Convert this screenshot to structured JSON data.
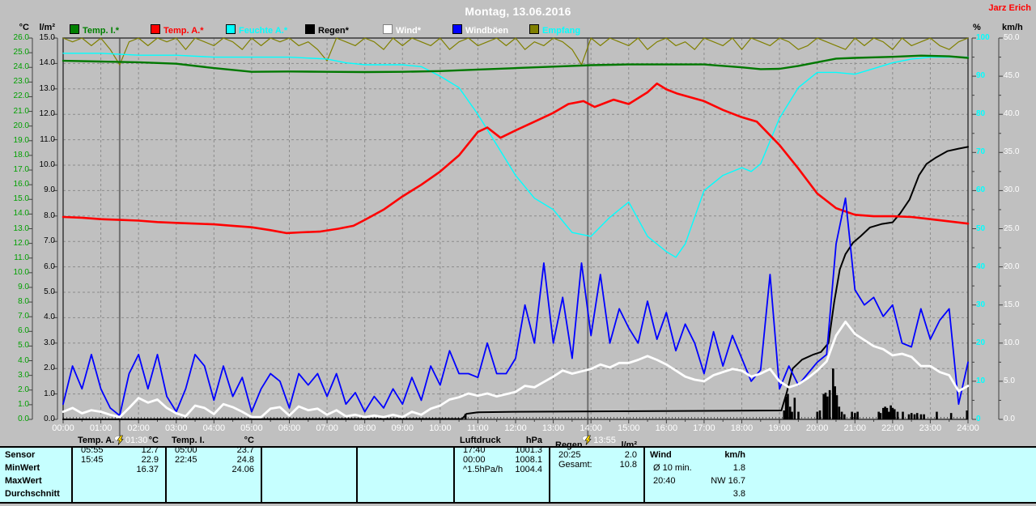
{
  "window": {
    "title": "Montag, 13.06.2016",
    "owner": "Jarz Erich"
  },
  "colors": {
    "background": "#c0c0c0",
    "grid": "#8c8c8c",
    "frame": "#404040",
    "temp_axis": "#00a000",
    "rain_axis_text": "#000000",
    "pct_axis": "#00ffff",
    "wind_axis": "#ffffff",
    "x_axis_text": "#ffffff",
    "temp_i": "#007800",
    "temp_a": "#ff0000",
    "feuchte": "#00ffff",
    "regen": "#000000",
    "wind": "#ffffff",
    "windboeen": "#0000ff",
    "empfang": "#808000"
  },
  "legend": {
    "items": [
      {
        "label": "Temp. I.*",
        "square": "#008000",
        "text": "#008000",
        "x": 86
      },
      {
        "label": "Temp. A.*",
        "square": "#ff0000",
        "text": "#ff0000",
        "x": 186
      },
      {
        "label": "Feuchte A.*",
        "square": "#00ffff",
        "text": "#00ffff",
        "x": 279
      },
      {
        "label": "Regen*",
        "square": "#000000",
        "text": "#000000",
        "x": 377
      },
      {
        "label": "Wind*",
        "square": "#ffffff",
        "text": "#ffffff",
        "x": 473
      },
      {
        "label": "Windböen",
        "square": "#0000ff",
        "text": "#ffffff",
        "x": 559
      },
      {
        "label": "Empfang",
        "square": "#808000",
        "text": "#00ffff",
        "x": 654
      }
    ]
  },
  "axes": {
    "temp": {
      "title": "°C",
      "min": 0,
      "max": 26,
      "ticks": [
        "26.0",
        "25.0",
        "24.0",
        "23.0",
        "22.0",
        "21.0",
        "20.0",
        "19.0",
        "18.0",
        "17.0",
        "16.0",
        "15.0",
        "14.0",
        "13.0",
        "12.0",
        "11.0",
        "10.0",
        "9.0",
        "8.0",
        "7.0",
        "6.0",
        "5.0",
        "4.0",
        "3.0",
        "2.0",
        "1.0",
        "0.0"
      ]
    },
    "rain": {
      "title": "l/m²",
      "min": 0,
      "max": 15,
      "ticks": [
        "15.0",
        "14.0",
        "13.0",
        "12.0",
        "11.0",
        "10.0",
        "9.0",
        "8.0",
        "7.0",
        "6.0",
        "5.0",
        "4.0",
        "3.0",
        "2.0",
        "1.0",
        "0.0"
      ]
    },
    "pct": {
      "title": "%",
      "min": 0,
      "max": 100,
      "ticks": [
        "100",
        "90",
        "80",
        "70",
        "60",
        "50",
        "40",
        "30",
        "20",
        "10",
        "0"
      ]
    },
    "wind": {
      "title": "km/h",
      "min": 0,
      "max": 50,
      "ticks": [
        "50.0",
        "45.0",
        "40.0",
        "35.0",
        "30.0",
        "25.0",
        "20.0",
        "15.0",
        "10.0",
        "5.0",
        "0.0"
      ]
    }
  },
  "x_axis": {
    "labels": [
      "00:00",
      "01:00",
      "02:00",
      "03:00",
      "04:00",
      "05:00",
      "06:00",
      "07:00",
      "08:00",
      "09:00",
      "10:00",
      "11:00",
      "12:00",
      "13:00",
      "14:00",
      "15:00",
      "16:00",
      "17:00",
      "18:00",
      "19:00",
      "20:00",
      "21:00",
      "22:00",
      "23:00",
      "24:00"
    ]
  },
  "markers": [
    {
      "label": "01:30",
      "hour": 1.5
    },
    {
      "label": "13:55",
      "hour": 13.9167
    }
  ],
  "chart_data": {
    "type": "line",
    "title": "Montag, 13.06.2016",
    "x_unit": "hours 0-24",
    "axis_ranges": {
      "temp_c": [
        0,
        26
      ],
      "rain_lm2": [
        0,
        15
      ],
      "humidity_pct": [
        0,
        100
      ],
      "wind_kmh": [
        0,
        50
      ]
    },
    "series": [
      {
        "name": "Temp. I.",
        "unit": "°C",
        "axis": "temp",
        "color": "#007800",
        "width": 2.4,
        "x": [
          0,
          1,
          2,
          3,
          4,
          5,
          6,
          7,
          8,
          9,
          10,
          11,
          12,
          13,
          14,
          15,
          16,
          17,
          18,
          18.5,
          19,
          19.5,
          20,
          20.5,
          21,
          22,
          22.75,
          23.5,
          24
        ],
        "y": [
          24.45,
          24.4,
          24.35,
          24.25,
          23.95,
          23.7,
          23.72,
          23.7,
          23.68,
          23.7,
          23.75,
          23.85,
          23.95,
          24.05,
          24.15,
          24.2,
          24.2,
          24.2,
          24.0,
          23.88,
          23.9,
          24.1,
          24.35,
          24.6,
          24.65,
          24.72,
          24.8,
          24.75,
          24.65
        ]
      },
      {
        "name": "Temp. A.",
        "unit": "°C",
        "axis": "temp",
        "color": "#ff0000",
        "width": 2.6,
        "x": [
          0,
          0.5,
          1,
          1.5,
          2,
          2.5,
          3,
          3.5,
          4,
          4.5,
          5,
          5.5,
          5.92,
          6.3,
          6.8,
          7.3,
          7.7,
          8,
          8.5,
          9,
          9.5,
          10,
          10.5,
          11,
          11.25,
          11.6,
          12,
          12.5,
          13,
          13.4,
          13.8,
          14.1,
          14.3,
          14.6,
          15,
          15.5,
          15.75,
          16,
          16.3,
          17,
          17.5,
          18,
          18.4,
          19,
          19.5,
          20,
          20.5,
          21,
          21.5,
          22,
          22.5,
          23,
          23.5,
          24
        ],
        "y": [
          13.8,
          13.75,
          13.65,
          13.6,
          13.55,
          13.45,
          13.4,
          13.35,
          13.3,
          13.2,
          13.1,
          12.9,
          12.7,
          12.75,
          12.8,
          13.0,
          13.2,
          13.6,
          14.3,
          15.2,
          16.0,
          16.9,
          18.0,
          19.6,
          19.9,
          19.2,
          19.7,
          20.3,
          20.9,
          21.5,
          21.7,
          21.3,
          21.5,
          21.8,
          21.5,
          22.3,
          22.9,
          22.5,
          22.2,
          21.7,
          21.1,
          20.6,
          20.3,
          18.7,
          17.1,
          15.4,
          14.4,
          13.95,
          13.85,
          13.85,
          13.8,
          13.65,
          13.5,
          13.35
        ]
      },
      {
        "name": "Feuchte A.",
        "unit": "%",
        "axis": "pct",
        "color": "#00ffff",
        "width": 1.4,
        "x": [
          0,
          1,
          2,
          3,
          4,
          5,
          6,
          7,
          7.5,
          8,
          9,
          9.5,
          10,
          10.5,
          11,
          11.5,
          12,
          12.5,
          13,
          13.5,
          14,
          14.5,
          15,
          15.5,
          16,
          16.25,
          16.5,
          17,
          17.5,
          18,
          18.25,
          18.5,
          19,
          19.5,
          20,
          20.5,
          21,
          21.5,
          22,
          22.5,
          23,
          24
        ],
        "y": [
          96,
          96,
          95.5,
          95.5,
          95,
          95,
          95,
          94.5,
          93.5,
          93,
          93,
          92.5,
          90,
          87,
          80,
          72,
          64,
          58,
          55,
          49,
          48,
          53,
          57,
          48,
          44,
          42.5,
          46,
          60,
          64,
          66,
          65,
          67,
          79,
          87,
          91,
          91,
          90.5,
          92,
          93.5,
          94.5,
          95,
          95
        ]
      },
      {
        "name": "Regen Summe",
        "unit": "l/m²",
        "axis": "rain",
        "color": "#000000",
        "width": 2,
        "x": [
          0,
          10.58,
          10.7,
          11.0,
          12.0,
          19.05,
          19.2,
          19.35,
          19.6,
          19.9,
          20.1,
          20.3,
          20.45,
          20.6,
          20.75,
          20.95,
          21.15,
          21.4,
          21.7,
          22.0,
          22.2,
          22.45,
          22.7,
          22.9,
          23.15,
          23.45,
          23.75,
          24.0
        ],
        "y": [
          0,
          0.02,
          0.22,
          0.28,
          0.3,
          0.35,
          1.1,
          2.0,
          2.35,
          2.55,
          2.65,
          3.0,
          4.6,
          5.9,
          6.5,
          6.95,
          7.2,
          7.55,
          7.68,
          7.75,
          8.1,
          8.65,
          9.6,
          10.05,
          10.3,
          10.55,
          10.65,
          10.72
        ]
      },
      {
        "name": "Wind",
        "unit": "km/h",
        "axis": "wind",
        "color": "#ffffff",
        "width": 2.8,
        "step": 0.25,
        "values": [
          1.0,
          1.5,
          0.8,
          1.2,
          1.0,
          0.6,
          0.3,
          1.5,
          2.8,
          2.2,
          2.6,
          1.5,
          0.8,
          0.4,
          1.8,
          1.5,
          0.7,
          2.0,
          1.6,
          1.0,
          0.3,
          0.3,
          1.4,
          1.6,
          0.5,
          1.7,
          1.2,
          1.4,
          0.6,
          1.2,
          0.4,
          0.6,
          0.3,
          0.5,
          0.3,
          0.6,
          0.3,
          1.0,
          0.6,
          1.4,
          1.8,
          2.6,
          2.9,
          3.4,
          3.1,
          3.4,
          3.0,
          3.3,
          3.6,
          4.4,
          4.2,
          4.9,
          5.6,
          6.4,
          6.0,
          6.3,
          6.6,
          7.2,
          6.8,
          7.4,
          7.4,
          7.8,
          8.3,
          7.8,
          7.2,
          6.4,
          5.6,
          5.2,
          5.0,
          5.8,
          6.2,
          6.6,
          6.4,
          5.6,
          6.0,
          6.6,
          5.0,
          4.2,
          4.6,
          5.4,
          6.4,
          7.6,
          11.0,
          12.8,
          11.2,
          10.4,
          9.6,
          9.2,
          8.4,
          8.6,
          8.2,
          7.0,
          7.0,
          6.2,
          5.8,
          3.7,
          4.4
        ]
      },
      {
        "name": "Windböen",
        "unit": "km/h",
        "axis": "wind",
        "color": "#0000ff",
        "width": 1.8,
        "step": 0.25,
        "values": [
          2,
          7,
          4,
          8.5,
          4,
          1.5,
          0.5,
          6,
          8.5,
          4,
          8.5,
          3,
          1,
          4,
          8.5,
          7,
          2.5,
          7,
          3,
          5.5,
          1,
          4,
          6,
          5,
          1.5,
          6,
          4.5,
          6,
          3,
          6,
          2,
          3.5,
          1,
          3,
          1.5,
          4,
          2,
          5.5,
          2.5,
          7,
          4.5,
          9,
          6,
          6,
          5.5,
          10,
          6,
          6,
          8,
          15,
          10,
          20.5,
          10,
          16,
          8,
          20.5,
          11,
          19,
          10,
          14.5,
          12,
          10,
          15.5,
          10.5,
          14,
          9,
          12.5,
          10,
          6,
          11.5,
          7,
          11,
          8,
          5,
          6.5,
          19,
          4,
          7,
          4.5,
          6,
          7.5,
          8.5,
          23,
          29,
          17,
          15,
          16,
          13.5,
          15,
          10,
          9.5,
          14.5,
          10.5,
          13,
          14.5,
          2,
          7.5
        ]
      },
      {
        "name": "Empfang",
        "unit": "%",
        "axis": "pct",
        "color": "#808000",
        "width": 1.2,
        "step": 0.25,
        "values": [
          100,
          99,
          100,
          98,
          100,
          97,
          93,
          99,
          100,
          98,
          100,
          99,
          100,
          97,
          100,
          99,
          98,
          100,
          99,
          97,
          100,
          98,
          100,
          99,
          100,
          98,
          99,
          97,
          94,
          100,
          99,
          98,
          100,
          99,
          97,
          100,
          98,
          100,
          99,
          98,
          100,
          97,
          99,
          100,
          98,
          99,
          100,
          98,
          100,
          97,
          99,
          98,
          100,
          99,
          97,
          93,
          100,
          98,
          100,
          99,
          98,
          100,
          97,
          99,
          100,
          98,
          99,
          97,
          100,
          99,
          98,
          100,
          97,
          100,
          99,
          98,
          100,
          99,
          97,
          98,
          100,
          99,
          98,
          97,
          100,
          98,
          100,
          99,
          97,
          100,
          98,
          99,
          100,
          98,
          97,
          99,
          100
        ]
      }
    ],
    "rain_bars": {
      "name": "Regen",
      "unit": "l/m²",
      "axis": "rain",
      "color": "#000000",
      "bars": [
        [
          10.67,
          0.22
        ],
        [
          19.12,
          0.35
        ],
        [
          19.17,
          0.9
        ],
        [
          19.22,
          1.0
        ],
        [
          19.28,
          0.5
        ],
        [
          19.33,
          0.3
        ],
        [
          19.4,
          0.85
        ],
        [
          19.5,
          0.3
        ],
        [
          20.0,
          0.3
        ],
        [
          20.07,
          0.35
        ],
        [
          20.17,
          1.0
        ],
        [
          20.22,
          1.05
        ],
        [
          20.27,
          0.9
        ],
        [
          20.33,
          1.15
        ],
        [
          20.42,
          2.0
        ],
        [
          20.47,
          1.3
        ],
        [
          20.52,
          0.95
        ],
        [
          20.58,
          0.5
        ],
        [
          20.65,
          0.3
        ],
        [
          20.72,
          0.2
        ],
        [
          20.92,
          0.3
        ],
        [
          21.0,
          0.25
        ],
        [
          21.07,
          0.3
        ],
        [
          21.63,
          0.3
        ],
        [
          21.68,
          0.25
        ],
        [
          21.75,
          0.45
        ],
        [
          21.8,
          0.5
        ],
        [
          21.85,
          0.45
        ],
        [
          21.9,
          0.3
        ],
        [
          21.95,
          0.55
        ],
        [
          22.0,
          0.45
        ],
        [
          22.05,
          0.4
        ],
        [
          22.13,
          0.3
        ],
        [
          22.27,
          0.3
        ],
        [
          22.43,
          0.2
        ],
        [
          22.5,
          0.25
        ],
        [
          22.58,
          0.2
        ],
        [
          22.65,
          0.25
        ],
        [
          22.75,
          0.2
        ],
        [
          22.83,
          0.2
        ],
        [
          23.17,
          0.3
        ],
        [
          23.55,
          0.25
        ],
        [
          23.97,
          0.35
        ]
      ]
    }
  },
  "table": {
    "row_labels": [
      "Sensor",
      "MinWert",
      "MaxWert",
      "Durchschnitt"
    ],
    "columns": [
      {
        "name": "Temp. A.",
        "unit": "°C",
        "rows": [
          [
            "05:55",
            "12.7"
          ],
          [
            "15:45",
            "22.9"
          ],
          [
            "",
            "16.37"
          ]
        ]
      },
      {
        "name": "Temp. I.",
        "unit": "°C",
        "rows": [
          [
            "05:00",
            "23.7"
          ],
          [
            "22:45",
            "24.8"
          ],
          [
            "",
            "24.06"
          ]
        ]
      },
      {
        "name": "",
        "unit": "",
        "rows": [
          [
            "",
            ""
          ],
          [
            "",
            ""
          ],
          [
            "",
            ""
          ]
        ]
      },
      {
        "name": "",
        "unit": "",
        "rows": [
          [
            "",
            ""
          ],
          [
            "",
            ""
          ],
          [
            "",
            ""
          ]
        ]
      },
      {
        "name": "Luftdruck",
        "unit": "hPa",
        "rows": [
          [
            "17:40",
            "1001.3"
          ],
          [
            "00:00",
            "1008.1"
          ],
          [
            "^1.5hPa/h",
            "1004.4"
          ]
        ]
      },
      {
        "name": "Regen",
        "unit": "l/m²",
        "rows": [
          [
            "",
            ""
          ],
          [
            "20:25",
            "2.0"
          ],
          [
            "Gesamt:",
            "10.8"
          ]
        ]
      },
      {
        "name": "Wind",
        "unit": "km/h",
        "rows": [
          [
            "Ø 10 min.",
            "1.8"
          ],
          [
            "20:40",
            "NW 16.7"
          ],
          [
            "",
            "3.8"
          ]
        ]
      }
    ]
  }
}
